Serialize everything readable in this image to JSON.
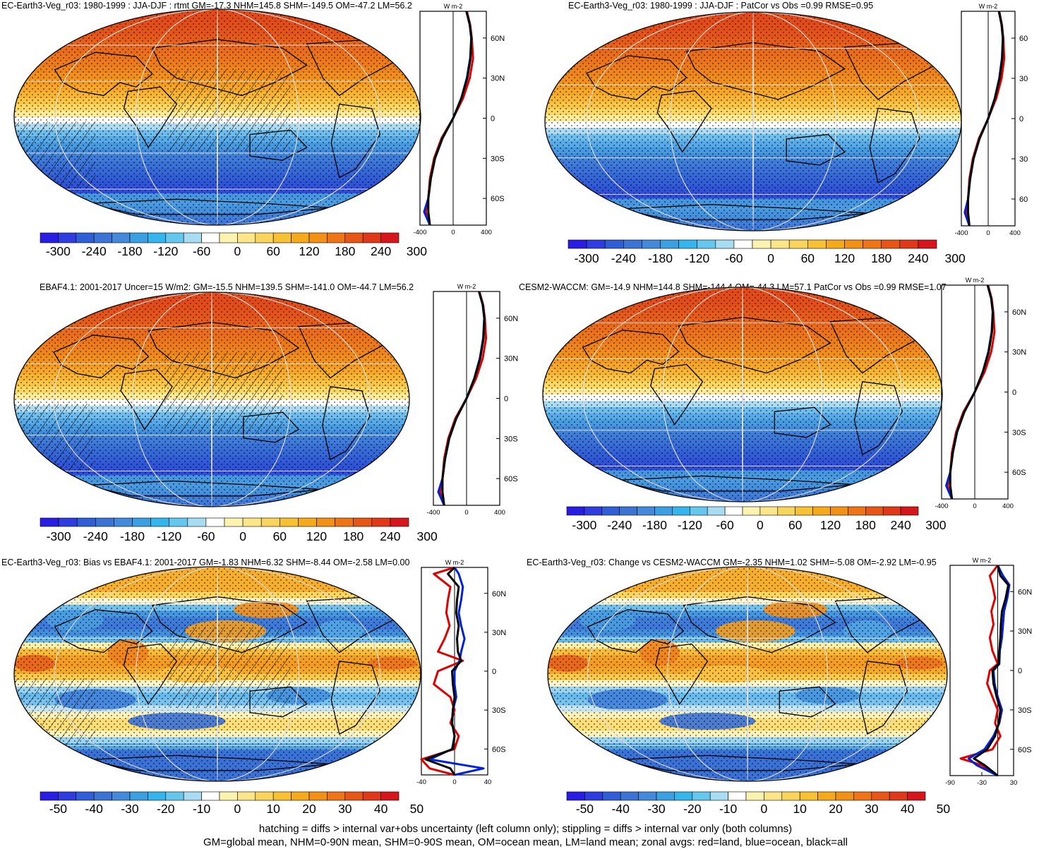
{
  "footer": {
    "line1": "hatching = diffs > internal var+obs uncertainty (left column only); stippling = diffs > internal var only (both columns)",
    "line2": "GM=global mean, NHM=0-90N mean, SHM=0-90S mean, OM=ocean mean, LM=land mean; zonal avgs: red=land, blue=ocean, black=all"
  },
  "scales": {
    "abs": {
      "ticks": [
        "-300",
        "-240",
        "-180",
        "-120",
        "-60",
        "0",
        "60",
        "120",
        "180",
        "240",
        "300"
      ],
      "colors": [
        "#2a1de3",
        "#2f3ce0",
        "#2f5ed6",
        "#3c74d6",
        "#4389dc",
        "#3aa0e2",
        "#35b5ee",
        "#66c7ee",
        "#a8dcf2",
        "#ffffff",
        "#fdf3b0",
        "#fde68a",
        "#fad55c",
        "#f7c133",
        "#f5aa1b",
        "#f39016",
        "#ee7416",
        "#e85616",
        "#e2381a",
        "#d6161a"
      ]
    },
    "diff": {
      "ticks": [
        "-50",
        "-40",
        "-30",
        "-20",
        "-10",
        "0",
        "10",
        "20",
        "30",
        "40",
        "50"
      ],
      "colors": [
        "#2a1de3",
        "#2f3ce0",
        "#2f5ed6",
        "#3c74d6",
        "#4389dc",
        "#3aa0e2",
        "#35b5ee",
        "#66c7ee",
        "#a8dcf2",
        "#ffffff",
        "#fdf3b0",
        "#fde68a",
        "#fad55c",
        "#f7c133",
        "#f5aa1b",
        "#f39016",
        "#ee7416",
        "#e85616",
        "#e2381a",
        "#d6161a"
      ]
    }
  },
  "chart_data": [
    {
      "type": "heatmap",
      "title": "EC-Earth3-Veg_r03: 1980-1999 : JJA-DJF : rtmt GM=-17.3 NHM=145.8 SHM=-149.5 OM=-47.2 LM=56.2",
      "field": "abs",
      "hatching": true,
      "stippling": true,
      "colorbar": {
        "scale": "abs",
        "range": [
          -330,
          330
        ]
      },
      "zonal_mean": {
        "unit": "W m-2",
        "xlim": [
          -400,
          400
        ],
        "xticks": [
          "-400",
          "0",
          "400"
        ],
        "yticks": [
          "60N",
          "30N",
          "0",
          "30S",
          "60S"
        ],
        "lat": [
          80,
          70,
          60,
          45,
          30,
          15,
          0,
          -15,
          -30,
          -45,
          -60,
          -70,
          -80
        ],
        "all": [
          160,
          200,
          220,
          210,
          170,
          100,
          0,
          -130,
          -220,
          -270,
          -300,
          -300,
          -280
        ],
        "land": [
          165,
          205,
          225,
          240,
          200,
          120,
          0,
          -140,
          -230,
          -280,
          -300,
          -330,
          -280
        ],
        "ocean": [
          160,
          200,
          218,
          205,
          165,
          98,
          0,
          -128,
          -218,
          -268,
          -300,
          -350,
          -280
        ]
      }
    },
    {
      "type": "heatmap",
      "title": "EC-Earth3-Veg_r03: 1980-1999 : JJA-DJF : PatCor vs Obs =0.99 RMSE=0.95",
      "field": "abs",
      "hatching": false,
      "stippling": true,
      "colorbar": {
        "scale": "abs",
        "range": [
          -330,
          330
        ]
      },
      "zonal_mean": {
        "unit": "W m-2",
        "xlim": [
          -400,
          400
        ],
        "xticks": [
          "-400",
          "0",
          "400"
        ],
        "yticks": [
          "60",
          "30",
          "0",
          "30",
          "60"
        ],
        "lat": [
          80,
          70,
          60,
          45,
          30,
          15,
          0,
          -15,
          -30,
          -45,
          -60,
          -70,
          -80
        ],
        "all": [
          160,
          200,
          220,
          210,
          170,
          100,
          0,
          -130,
          -220,
          -270,
          -300,
          -300,
          -280
        ],
        "land": [
          165,
          205,
          225,
          240,
          200,
          120,
          0,
          -140,
          -230,
          -280,
          -300,
          -330,
          -280
        ],
        "ocean": [
          160,
          200,
          218,
          205,
          165,
          98,
          0,
          -128,
          -218,
          -268,
          -300,
          -350,
          -280
        ]
      }
    },
    {
      "type": "heatmap",
      "title": "EBAF4.1: 2001-2017 Uncer=15 W/m2: GM=-15.5 NHM=139.5 SHM=-141.0 OM=-44.7 LM=56.2",
      "field": "abs",
      "hatching": true,
      "stippling": true,
      "colorbar": {
        "scale": "abs",
        "range": [
          -330,
          330
        ]
      },
      "zonal_mean": {
        "unit": "W m-2",
        "xlim": [
          -400,
          400
        ],
        "xticks": [
          "-400",
          "0",
          "400"
        ],
        "yticks": [
          "60N",
          "30N",
          "0",
          "30S",
          "60S"
        ],
        "lat": [
          80,
          70,
          60,
          45,
          30,
          15,
          0,
          -15,
          -30,
          -45,
          -60,
          -70,
          -80
        ],
        "all": [
          150,
          195,
          215,
          205,
          165,
          95,
          0,
          -125,
          -210,
          -260,
          -290,
          -290,
          -270
        ],
        "land": [
          155,
          200,
          220,
          235,
          195,
          115,
          0,
          -135,
          -220,
          -270,
          -290,
          -320,
          -270
        ],
        "ocean": [
          150,
          195,
          213,
          200,
          160,
          93,
          0,
          -123,
          -208,
          -258,
          -290,
          -340,
          -270
        ]
      }
    },
    {
      "type": "heatmap",
      "title": "CESM2-WACCM: GM=-14.9 NHM=144.8 SHM=-144.4 OM=-44.3 LM=57.1 PatCor vs Obs =0.99 RMSE=1.07",
      "field": "abs",
      "hatching": false,
      "stippling": true,
      "colorbar": {
        "scale": "abs",
        "range": [
          -330,
          330
        ]
      },
      "zonal_mean": {
        "unit": "W m-2",
        "xlim": [
          -400,
          400
        ],
        "xticks": [
          "-400",
          "0",
          "400"
        ],
        "yticks": [
          "60N",
          "30N",
          "0",
          "30S",
          "60S"
        ],
        "lat": [
          80,
          70,
          60,
          45,
          30,
          15,
          0,
          -15,
          -30,
          -45,
          -60,
          -70,
          -80
        ],
        "all": [
          155,
          198,
          218,
          208,
          168,
          98,
          0,
          -128,
          -215,
          -265,
          -295,
          -295,
          -275
        ],
        "land": [
          160,
          203,
          223,
          238,
          198,
          118,
          0,
          -138,
          -225,
          -275,
          -295,
          -325,
          -275
        ],
        "ocean": [
          155,
          198,
          216,
          203,
          163,
          96,
          0,
          -126,
          -213,
          -263,
          -295,
          -345,
          -275
        ]
      }
    },
    {
      "type": "heatmap",
      "title": "EC-Earth3-Veg_r03: Bias vs EBAF4.1: 2001-2017 GM=-1.83 NHM=6.32 SHM=-8.44 OM=-2.58 LM=0.00",
      "field": "diff",
      "hatching": true,
      "stippling": true,
      "colorbar": {
        "scale": "diff",
        "range": [
          -55,
          55
        ]
      },
      "zonal_mean": {
        "unit": "W m-2",
        "xlim": [
          -40,
          40
        ],
        "xticks": [
          "-40",
          "0",
          "40"
        ],
        "yticks": [
          "60N",
          "30N",
          "0",
          "30S",
          "60S"
        ],
        "lat": [
          80,
          75,
          65,
          55,
          45,
          35,
          25,
          15,
          8,
          0,
          -10,
          -20,
          -30,
          -40,
          -50,
          -60,
          -68,
          -75,
          -80
        ],
        "all": [
          0,
          -8,
          5,
          3,
          2,
          5,
          3,
          4,
          8,
          -3,
          -2,
          0,
          -2,
          -3,
          0,
          -2,
          -35,
          -5,
          0
        ],
        "land": [
          0,
          -25,
          -5,
          -8,
          -10,
          -6,
          -12,
          -20,
          10,
          -20,
          -25,
          -5,
          0,
          -5,
          5,
          0,
          -40,
          -30,
          0
        ],
        "ocean": [
          0,
          5,
          10,
          8,
          5,
          8,
          12,
          8,
          6,
          0,
          0,
          2,
          -2,
          -3,
          0,
          -3,
          -30,
          35,
          0
        ]
      }
    },
    {
      "type": "heatmap",
      "title": "EC-Earth3-Veg_r03: Change vs CESM2-WACCM GM=-2.35 NHM=1.02 SHM=-5.08 OM=-2.92 LM=-0.95",
      "field": "diff",
      "hatching": false,
      "stippling": true,
      "colorbar": {
        "scale": "diff",
        "range": [
          -55,
          55
        ]
      },
      "zonal_mean": {
        "unit": "W m-2",
        "xlim": [
          -90,
          30
        ],
        "xticks": [
          "-90",
          "-30",
          "30"
        ],
        "yticks": [
          "60N",
          "30N",
          "0",
          "30S",
          "60S"
        ],
        "lat": [
          80,
          72,
          65,
          55,
          45,
          35,
          25,
          15,
          5,
          0,
          -10,
          -20,
          -30,
          -40,
          -50,
          -60,
          -67,
          -72,
          -80
        ],
        "all": [
          0,
          5,
          20,
          15,
          8,
          6,
          5,
          3,
          2,
          -10,
          -8,
          -2,
          5,
          2,
          -5,
          -20,
          -45,
          -25,
          0
        ],
        "land": [
          0,
          -15,
          -10,
          -5,
          -12,
          -8,
          -15,
          -10,
          0,
          -15,
          -20,
          -10,
          0,
          -5,
          5,
          -10,
          -70,
          -30,
          0
        ],
        "ocean": [
          0,
          10,
          22,
          18,
          12,
          10,
          8,
          4,
          3,
          -8,
          -6,
          0,
          8,
          3,
          -8,
          -25,
          -55,
          -40,
          0
        ]
      }
    }
  ]
}
